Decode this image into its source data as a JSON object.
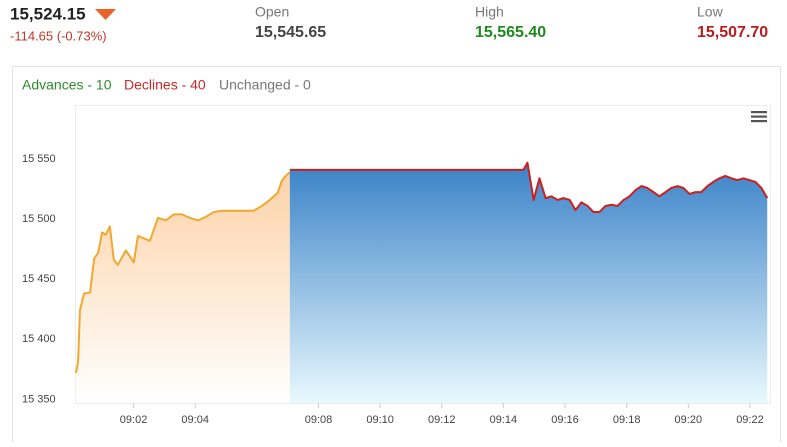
{
  "quote": {
    "last": "15,524.15",
    "change": "-114.65 (-0.73%)",
    "open": {
      "label": "Open",
      "value": "15,545.65"
    },
    "high": {
      "label": "High",
      "value": "15,565.40"
    },
    "low": {
      "label": "Low",
      "value": "15,507.70"
    }
  },
  "breadth": {
    "advances": "Advances - 10",
    "declines": "Declines - 40",
    "unchanged": "Unchanged - 0"
  },
  "chart_data": {
    "type": "area",
    "xlim": [
      0.1,
      22.65
    ],
    "ylim": [
      15347,
      15595
    ],
    "xticks": [
      {
        "value": 2,
        "label": "09:02"
      },
      {
        "value": 4,
        "label": "09:04"
      },
      {
        "value": 8,
        "label": "09:08"
      },
      {
        "value": 10,
        "label": "09:10"
      },
      {
        "value": 12,
        "label": "09:12"
      },
      {
        "value": 14,
        "label": "09:14"
      },
      {
        "value": 16,
        "label": "09:16"
      },
      {
        "value": 18,
        "label": "09:18"
      },
      {
        "value": 20,
        "label": "09:20"
      },
      {
        "value": 22,
        "label": "09:22"
      }
    ],
    "yticks": [
      {
        "value": 15350,
        "label": "15 350"
      },
      {
        "value": 15400,
        "label": "15 400"
      },
      {
        "value": 15450,
        "label": "15 450"
      },
      {
        "value": 15500,
        "label": "15 500"
      },
      {
        "value": 15550,
        "label": "15 550"
      }
    ],
    "grid": false,
    "series": [
      {
        "color": "#f0a830",
        "area_color": [
          "#fdd3a8",
          "#ffffff"
        ],
        "x": [
          0.13,
          0.2,
          0.26,
          0.39,
          0.59,
          0.72,
          0.85,
          0.98,
          1.1,
          1.23,
          1.36,
          1.49,
          1.75,
          2.01,
          2.14,
          2.53,
          2.79,
          3.05,
          3.31,
          3.57,
          3.83,
          4.09,
          4.35,
          4.61,
          4.86,
          5.12,
          5.38,
          5.64,
          5.9,
          6.16,
          6.42,
          6.68,
          6.81,
          6.94,
          7.07
        ],
        "values": [
          15372,
          15381,
          15424,
          15438,
          15439,
          15467,
          15472,
          15489,
          15487,
          15494,
          15466,
          15462,
          15474,
          15464,
          15486,
          15482,
          15501,
          15499,
          15504,
          15504,
          15501,
          15499,
          15502,
          15506,
          15507,
          15507,
          15507,
          15507,
          15507,
          15511,
          15516,
          15522,
          15532,
          15536,
          15539
        ]
      },
      {
        "color": "#cc1f1f",
        "area_color": [
          "#3a82c8",
          "#e9f9fe"
        ],
        "x": [
          7.07,
          14.65,
          14.78,
          14.98,
          15.17,
          15.37,
          15.56,
          15.76,
          15.95,
          16.15,
          16.34,
          16.53,
          16.73,
          16.92,
          17.12,
          17.31,
          17.51,
          17.7,
          17.9,
          18.09,
          18.28,
          18.48,
          18.67,
          18.87,
          19.06,
          19.26,
          19.45,
          19.65,
          19.84,
          20.04,
          20.23,
          20.42,
          20.62,
          20.81,
          21.01,
          21.2,
          21.4,
          21.59,
          21.79,
          21.98,
          22.18,
          22.37,
          22.56
        ],
        "values": [
          15541,
          15541,
          15547,
          15516,
          15534,
          15517.5,
          15519,
          15516,
          15517.5,
          15516,
          15507.5,
          15514,
          15511,
          15506,
          15506,
          15511,
          15512,
          15511,
          15516,
          15519,
          15524,
          15527.5,
          15526,
          15522.5,
          15519,
          15522.5,
          15526,
          15527.5,
          15526,
          15521,
          15522.5,
          15522.5,
          15527.5,
          15531,
          15534,
          15536,
          15534,
          15532.5,
          15534,
          15532.5,
          15531,
          15526,
          15517.5
        ]
      }
    ]
  }
}
